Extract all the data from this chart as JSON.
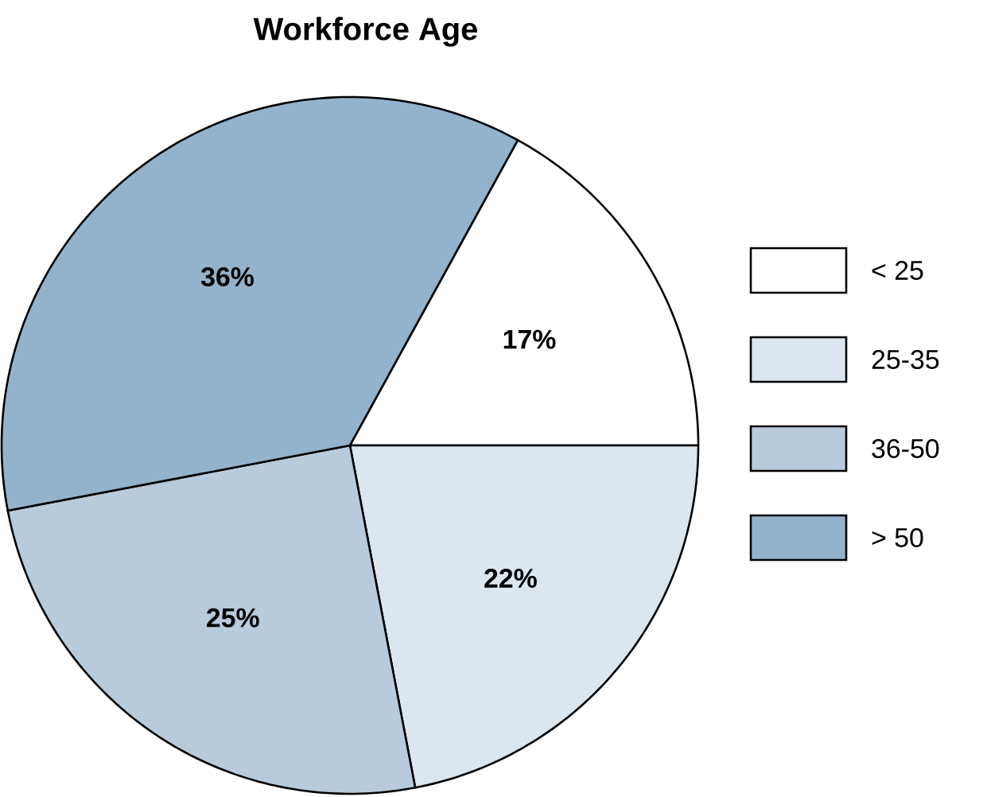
{
  "chart_data": {
    "type": "pie",
    "title": "Workforce Age",
    "categories": [
      "< 25",
      "25-35",
      "36-50",
      "> 50"
    ],
    "values": [
      17,
      22,
      25,
      36
    ],
    "value_labels": [
      "17%",
      "22%",
      "25%",
      "36%"
    ],
    "colors": [
      "#ffffff",
      "#dce6ee",
      "#b7cbdd",
      "#93b3cd"
    ],
    "legend": "right"
  }
}
